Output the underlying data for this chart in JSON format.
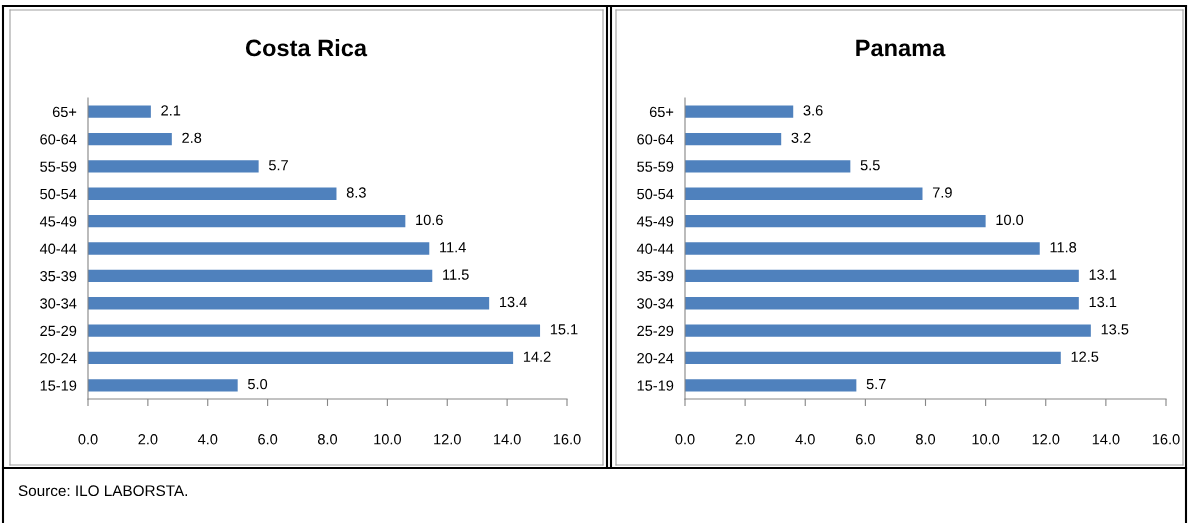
{
  "chart_data": [
    {
      "type": "bar",
      "orientation": "horizontal",
      "title": "Costa Rica",
      "categories": [
        "65+",
        "60-64",
        "55-59",
        "50-54",
        "45-49",
        "40-44",
        "35-39",
        "30-34",
        "25-29",
        "20-24",
        "15-19"
      ],
      "values": [
        2.1,
        2.8,
        5.7,
        8.3,
        10.6,
        11.4,
        11.5,
        13.4,
        15.1,
        14.2,
        5.0
      ],
      "value_labels": [
        "2.1",
        "2.8",
        "5.7",
        "8.3",
        "10.6",
        "11.4",
        "11.5",
        "13.4",
        "15.1",
        "14.2",
        "5.0"
      ],
      "color": "#4f81bd",
      "xlim": [
        0,
        16
      ],
      "xticks": [
        {
          "value": 0,
          "label": "0.0"
        },
        {
          "value": 2,
          "label": "2.0"
        },
        {
          "value": 4,
          "label": "4.0"
        },
        {
          "value": 6,
          "label": "6.0"
        },
        {
          "value": 8,
          "label": "8.0"
        },
        {
          "value": 10,
          "label": "10.0"
        },
        {
          "value": 12,
          "label": "12.0"
        },
        {
          "value": 14,
          "label": "14.0"
        },
        {
          "value": 16,
          "label": "16.0"
        }
      ],
      "grid": false,
      "annotations": [
        "Source: ILO LABORSTA."
      ]
    },
    {
      "type": "bar",
      "orientation": "horizontal",
      "title": "Panama",
      "categories": [
        "65+",
        "60-64",
        "55-59",
        "50-54",
        "45-49",
        "40-44",
        "35-39",
        "30-34",
        "25-29",
        "20-24",
        "15-19"
      ],
      "values": [
        3.6,
        3.2,
        5.5,
        7.9,
        10.0,
        11.8,
        13.1,
        13.1,
        13.5,
        12.5,
        5.7
      ],
      "value_labels": [
        "3.6",
        "3.2",
        "5.5",
        "7.9",
        "10.0",
        "11.8",
        "13.1",
        "13.1",
        "13.5",
        "12.5",
        "5.7"
      ],
      "color": "#4f81bd",
      "xlim": [
        0,
        16
      ],
      "xticks": [
        {
          "value": 0,
          "label": "0.0"
        },
        {
          "value": 2,
          "label": "2.0"
        },
        {
          "value": 4,
          "label": "4.0"
        },
        {
          "value": 6,
          "label": "6.0"
        },
        {
          "value": 8,
          "label": "8.0"
        },
        {
          "value": 10,
          "label": "10.0"
        },
        {
          "value": 12,
          "label": "12.0"
        },
        {
          "value": 14,
          "label": "14.0"
        },
        {
          "value": 16,
          "label": "16.0"
        }
      ],
      "grid": false
    }
  ]
}
